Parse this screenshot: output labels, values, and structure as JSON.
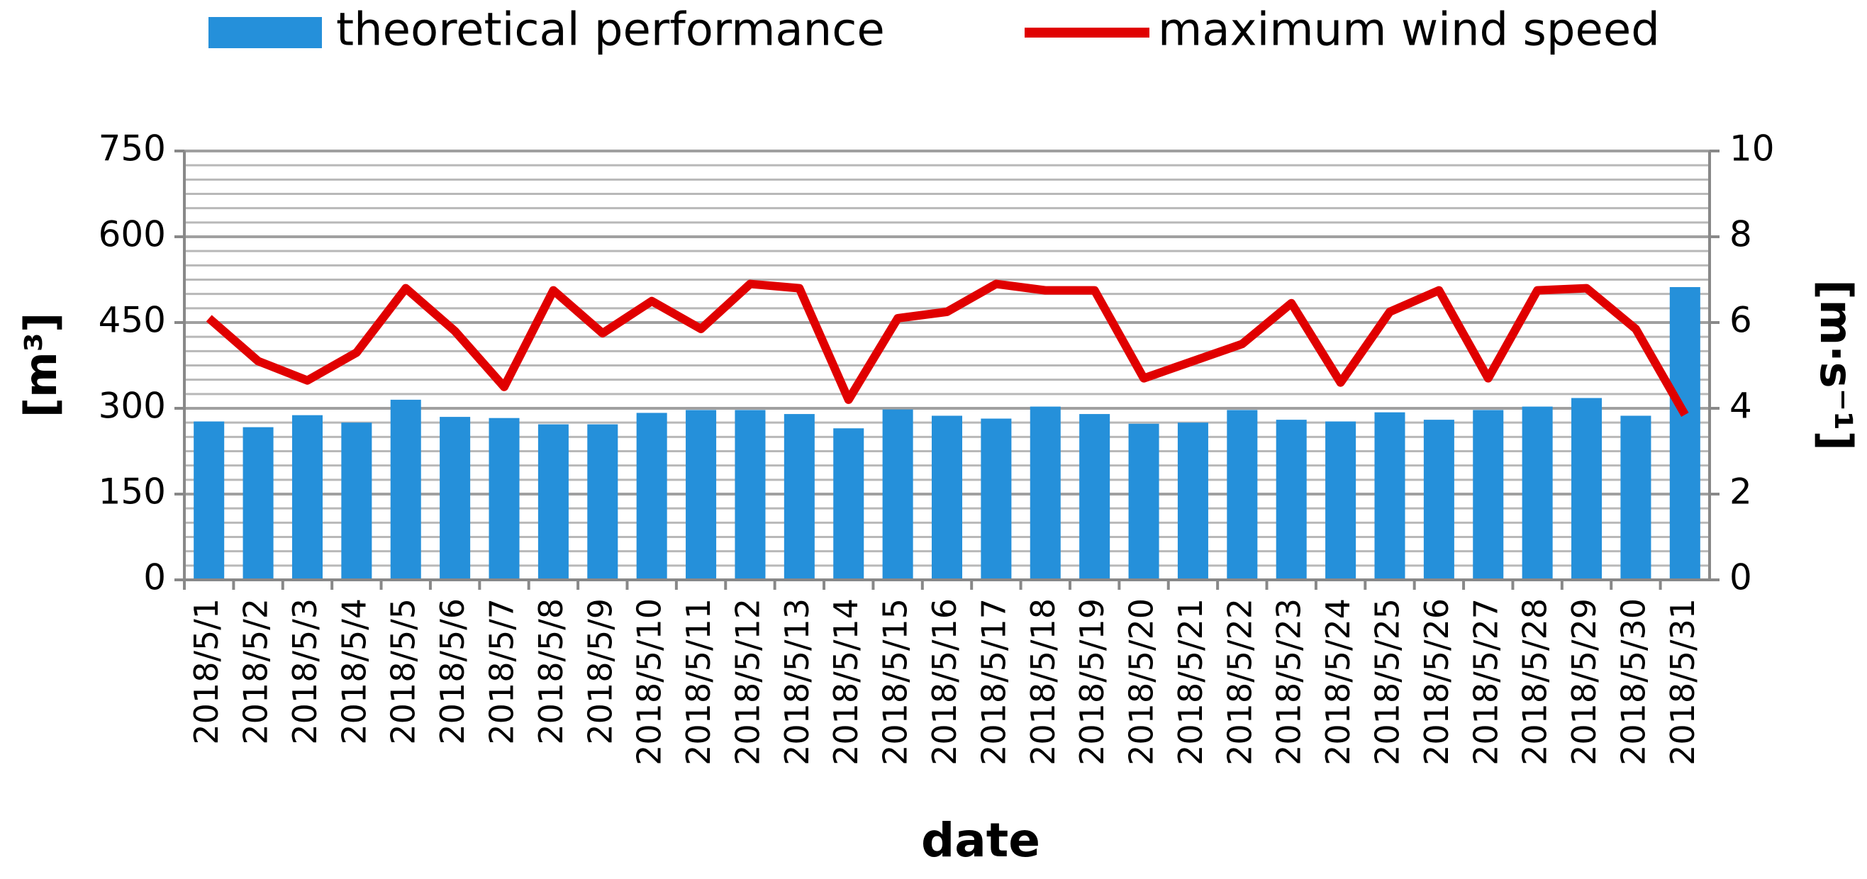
{
  "chart_data": {
    "type": "bar_line",
    "categories": [
      "2018/5/1",
      "2018/5/2",
      "2018/5/3",
      "2018/5/4",
      "2018/5/5",
      "2018/5/6",
      "2018/5/7",
      "2018/5/8",
      "2018/5/9",
      "2018/5/10",
      "2018/5/11",
      "2018/5/12",
      "2018/5/13",
      "2018/5/14",
      "2018/5/15",
      "2018/5/16",
      "2018/5/17",
      "2018/5/18",
      "2018/5/19",
      "2018/5/20",
      "2018/5/21",
      "2018/5/22",
      "2018/5/23",
      "2018/5/24",
      "2018/5/25",
      "2018/5/26",
      "2018/5/27",
      "2018/5/28",
      "2018/5/29",
      "2018/5/30",
      "2018/5/31"
    ],
    "series": [
      {
        "name": "theoretical performance",
        "type": "bar",
        "color": "#2590da",
        "values": [
          277,
          267,
          288,
          275,
          315,
          285,
          283,
          272,
          272,
          292,
          297,
          297,
          290,
          265,
          298,
          287,
          282,
          303,
          290,
          273,
          275,
          297,
          280,
          277,
          293,
          280,
          297,
          303,
          318,
          287,
          512
        ]
      },
      {
        "name": "maximum wind speed",
        "type": "line",
        "axis": "y2",
        "color": "#e00000",
        "values": [
          6.1,
          5.1,
          4.65,
          5.3,
          6.8,
          5.8,
          4.5,
          6.75,
          5.75,
          6.5,
          5.85,
          6.9,
          6.8,
          4.2,
          6.1,
          6.25,
          6.9,
          6.75,
          6.75,
          4.7,
          5.1,
          5.5,
          6.45,
          4.6,
          6.25,
          6.75,
          4.7,
          6.75,
          6.8,
          5.85,
          3.85
        ]
      }
    ],
    "x_label": "date",
    "y_label": "[m³]",
    "y2_label": "[m·s⁻¹]",
    "ylim": [
      0,
      750
    ],
    "yticks": [
      0,
      150,
      300,
      450,
      600,
      750
    ],
    "y2lim": [
      0,
      10
    ],
    "y2ticks": [
      0,
      2,
      4,
      6,
      8,
      10
    ],
    "grid": true,
    "minor_grid_step": 25,
    "legend": "top"
  }
}
